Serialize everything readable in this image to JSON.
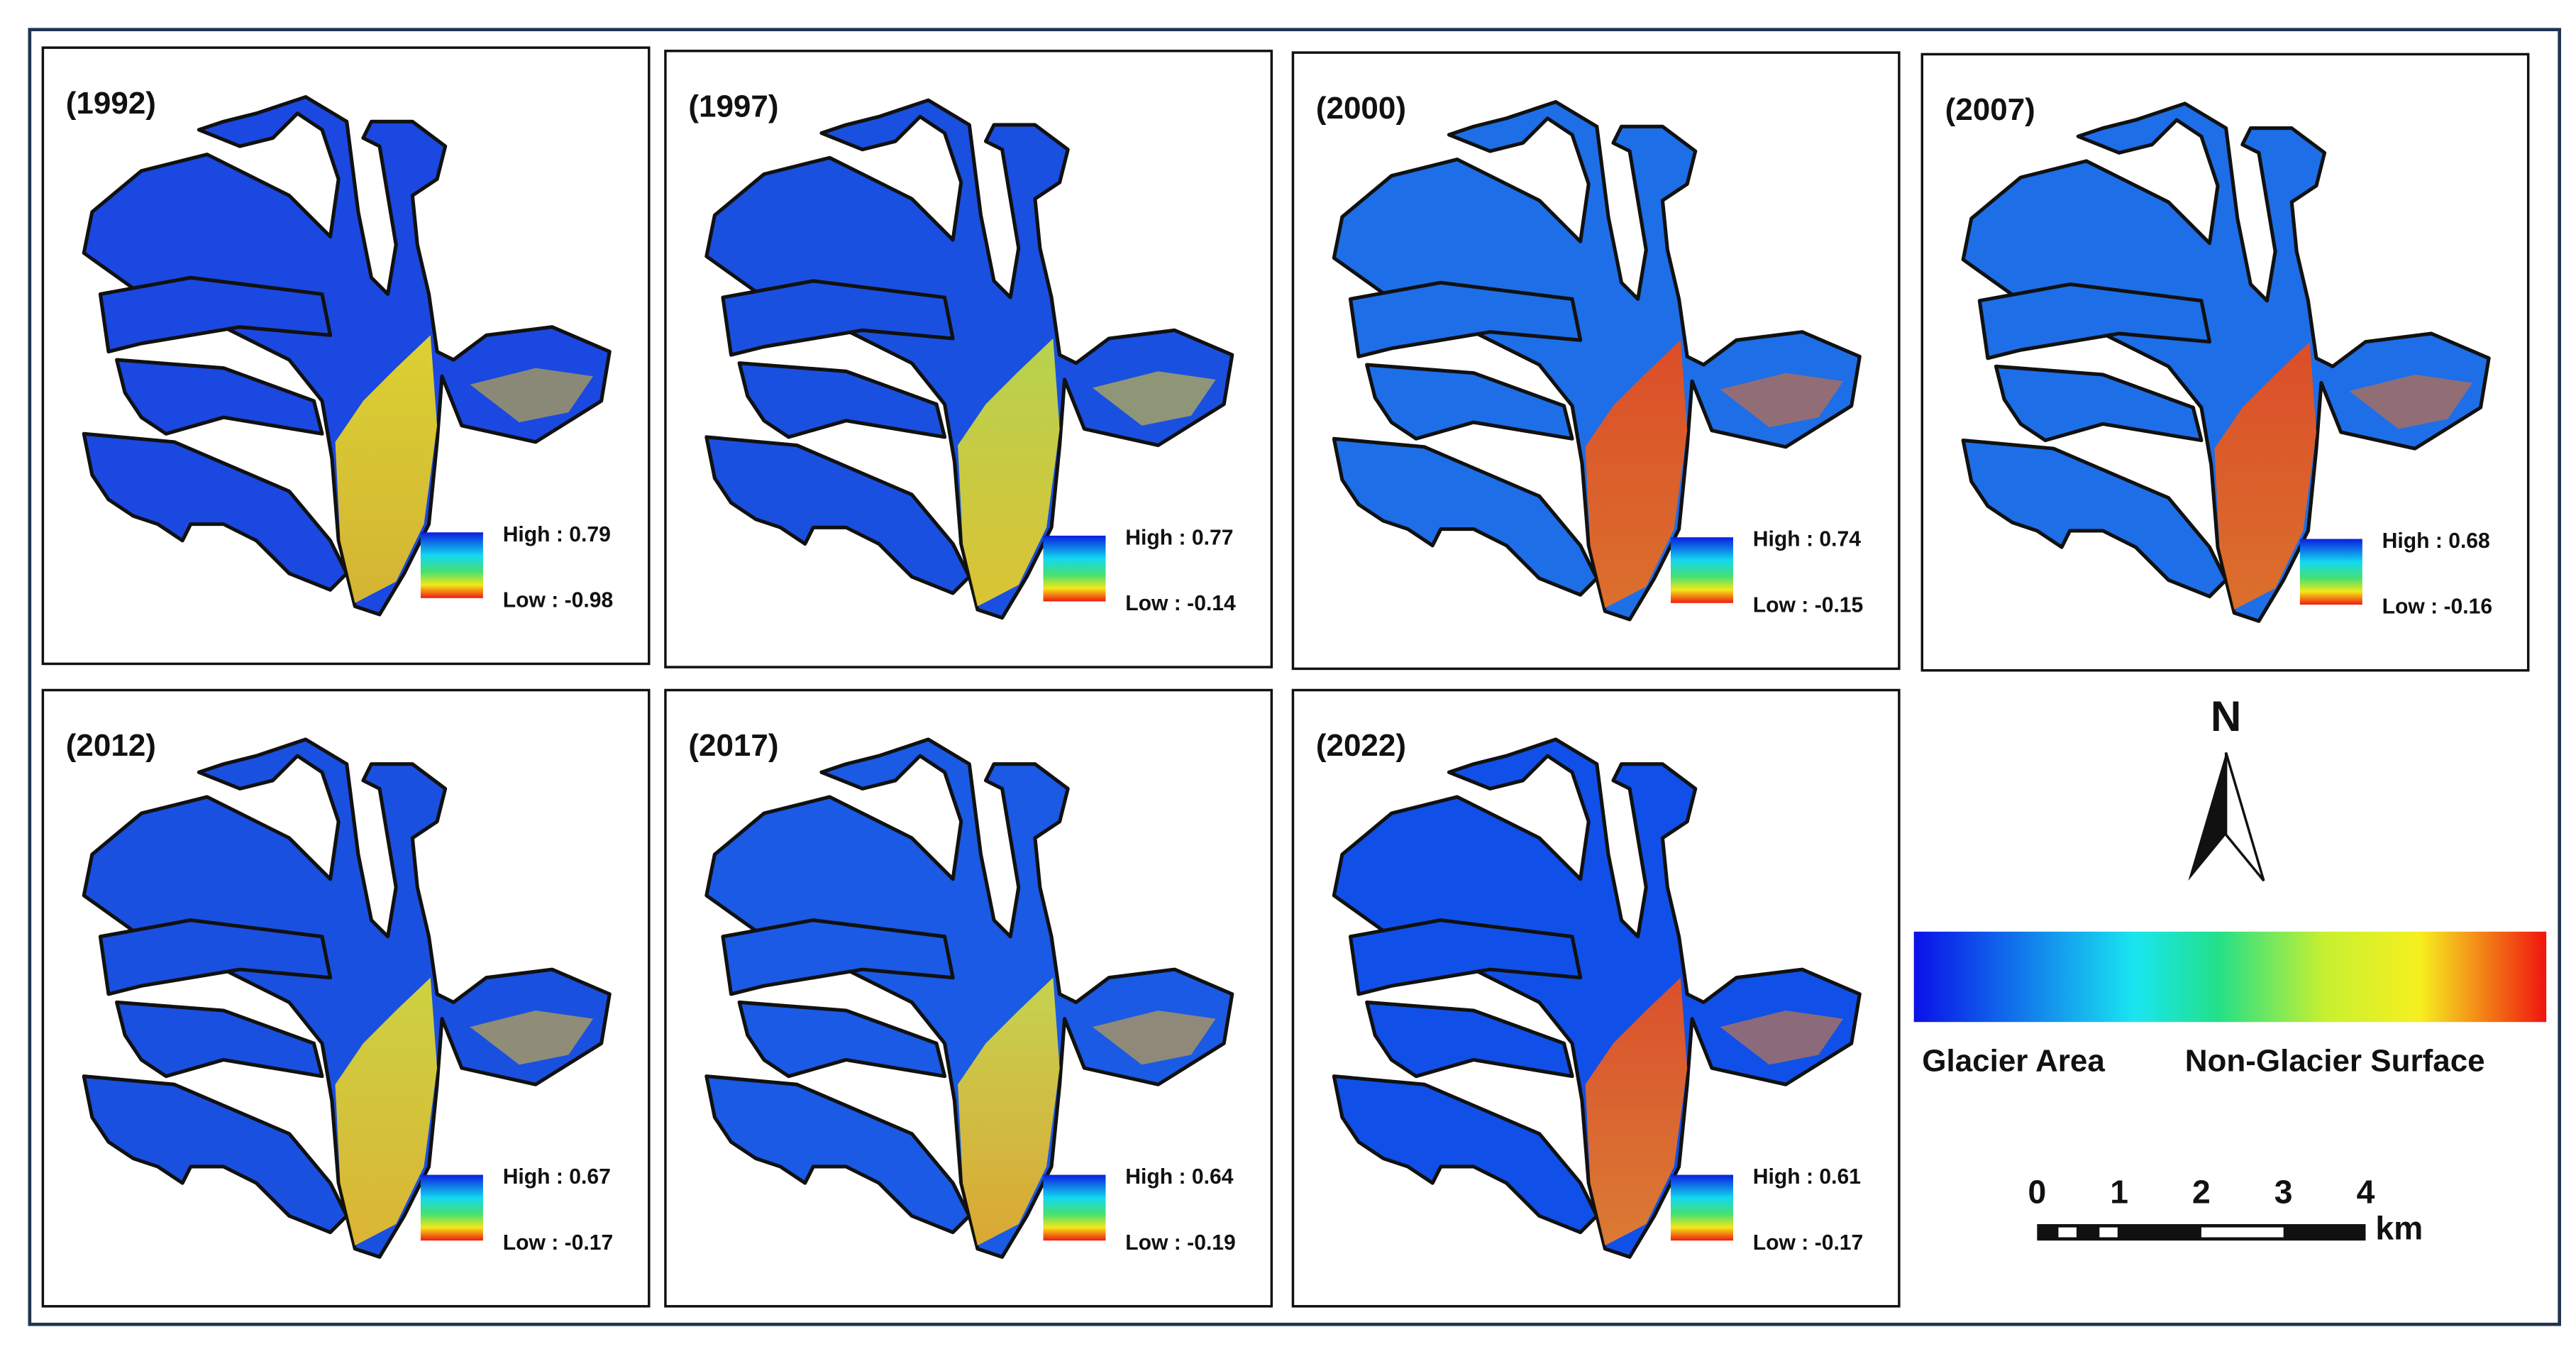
{
  "panels": [
    {
      "year": "(1992)",
      "high": "High : 0.79",
      "low": "Low : -0.98"
    },
    {
      "year": "(1997)",
      "high": "High : 0.77",
      "low": "Low : -0.14"
    },
    {
      "year": "(2000)",
      "high": "High : 0.74",
      "low": "Low : -0.15"
    },
    {
      "year": "(2007)",
      "high": "High : 0.68",
      "low": "Low : -0.16"
    },
    {
      "year": "(2012)",
      "high": "High : 0.67",
      "low": "Low : -0.17"
    },
    {
      "year": "(2017)",
      "high": "High : 0.64",
      "low": "Low : -0.19"
    },
    {
      "year": "(2022)",
      "high": "High : 0.61",
      "low": "Low : -0.17"
    }
  ],
  "legend": {
    "left": "Glacier Area",
    "right": "Non-Glacier Surface"
  },
  "north": "N",
  "scale": {
    "ticks": [
      "0",
      "1",
      "2",
      "3",
      "4"
    ],
    "unit": "km"
  }
}
